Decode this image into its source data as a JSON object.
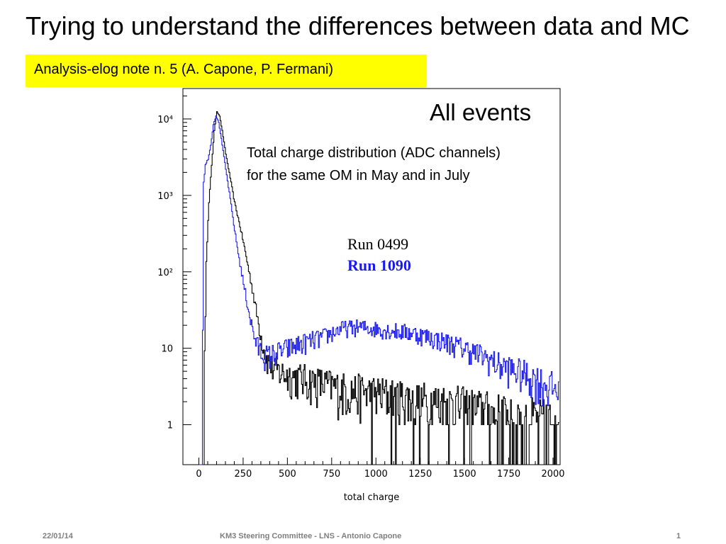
{
  "slide": {
    "title": "Trying to understand the differences between data and MC",
    "subtitle": "Analysis-elog note n. 5 (A. Capone, P. Fermani)",
    "plot_label": "All events",
    "description": [
      "Total charge distribution (ADC channels)",
      "for the same OM in May and in July"
    ],
    "footer": {
      "date": "22/01/14",
      "center": "KM3 Steering Committee - LNS - Antonio Capone",
      "page": "1"
    },
    "colors": {
      "highlight": "#ffff00",
      "run_0499": "#000000",
      "run_1090": "#1a1aee"
    }
  },
  "chart_data": {
    "type": "line",
    "title": "",
    "xlabel": "total charge",
    "ylabel": "",
    "xlim": [
      -90,
      2040
    ],
    "ylim": [
      0.3,
      25000
    ],
    "ylog": true,
    "x_ticks": [
      0,
      250,
      500,
      750,
      1000,
      1250,
      1500,
      1750,
      2000
    ],
    "x_tick_labels": [
      "0",
      "250",
      "500",
      "750",
      "1000",
      "1250",
      "1500",
      "1750",
      "2000"
    ],
    "y_ticks": [
      1,
      10,
      100,
      1000,
      10000
    ],
    "y_tick_labels": [
      "1",
      "10",
      "10²",
      "10³",
      "10⁴"
    ],
    "grid": false,
    "legend": "inside-center",
    "series": [
      {
        "name": "Run 0499",
        "color": "#000000",
        "points": [
          [
            0,
            0.3
          ],
          [
            20,
            0.3
          ],
          [
            40,
            150
          ],
          [
            55,
            800
          ],
          [
            70,
            2500
          ],
          [
            85,
            7000
          ],
          [
            100,
            12500
          ],
          [
            115,
            11000
          ],
          [
            130,
            7000
          ],
          [
            150,
            3500
          ],
          [
            175,
            1700
          ],
          [
            200,
            800
          ],
          [
            225,
            450
          ],
          [
            250,
            240
          ],
          [
            275,
            120
          ],
          [
            300,
            60
          ],
          [
            325,
            28
          ],
          [
            350,
            14
          ],
          [
            375,
            8
          ],
          [
            400,
            6
          ],
          [
            450,
            5
          ],
          [
            500,
            4.5
          ],
          [
            600,
            4
          ],
          [
            700,
            3.5
          ],
          [
            800,
            3
          ],
          [
            900,
            2.8
          ],
          [
            1000,
            2.6
          ],
          [
            1100,
            2.4
          ],
          [
            1200,
            2.2
          ],
          [
            1300,
            2
          ],
          [
            1400,
            1.9
          ],
          [
            1500,
            1.7
          ],
          [
            1600,
            1.5
          ],
          [
            1700,
            1.3
          ],
          [
            1800,
            1.2
          ],
          [
            1900,
            1.1
          ],
          [
            2000,
            1
          ],
          [
            2030,
            1
          ]
        ]
      },
      {
        "name": "Run 1090",
        "color": "#1a1aee",
        "points": [
          [
            0,
            0.3
          ],
          [
            15,
            0.3
          ],
          [
            25,
            1500
          ],
          [
            35,
            2500
          ],
          [
            50,
            3000
          ],
          [
            65,
            4500
          ],
          [
            80,
            8500
          ],
          [
            95,
            11000
          ],
          [
            110,
            9000
          ],
          [
            125,
            5500
          ],
          [
            150,
            2200
          ],
          [
            175,
            900
          ],
          [
            200,
            350
          ],
          [
            225,
            150
          ],
          [
            250,
            70
          ],
          [
            275,
            35
          ],
          [
            300,
            18
          ],
          [
            325,
            11
          ],
          [
            350,
            9
          ],
          [
            375,
            8
          ],
          [
            400,
            8
          ],
          [
            450,
            9
          ],
          [
            500,
            10
          ],
          [
            550,
            11
          ],
          [
            600,
            12
          ],
          [
            650,
            13
          ],
          [
            700,
            14
          ],
          [
            750,
            16
          ],
          [
            800,
            18
          ],
          [
            900,
            19
          ],
          [
            1000,
            18
          ],
          [
            1100,
            17
          ],
          [
            1200,
            16
          ],
          [
            1300,
            14
          ],
          [
            1400,
            12
          ],
          [
            1500,
            10
          ],
          [
            1600,
            8
          ],
          [
            1700,
            6
          ],
          [
            1800,
            5
          ],
          [
            1900,
            4
          ],
          [
            2000,
            3
          ],
          [
            2030,
            3
          ]
        ]
      }
    ]
  }
}
